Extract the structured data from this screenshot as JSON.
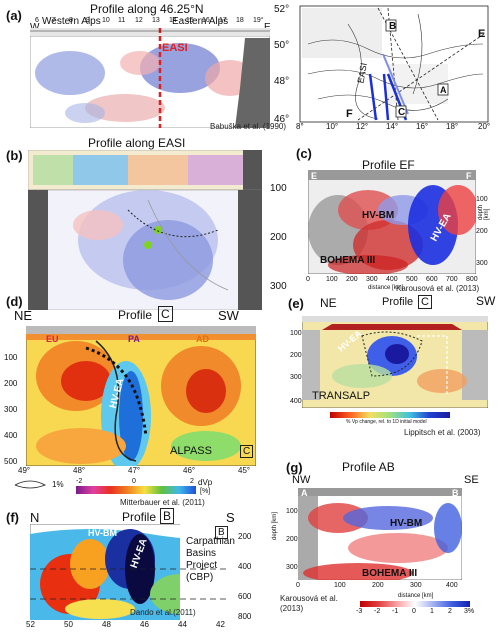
{
  "panel_a": {
    "label": "(a)",
    "title": "Profile along 46.25°N",
    "left_region": "Western Alps",
    "right_region": "Eastern Alps",
    "west": "W",
    "east": "E",
    "ticks": [
      "6",
      "7",
      "8",
      "9",
      "10",
      "11",
      "12",
      "13",
      "14",
      "15",
      "16",
      "17",
      "18",
      "19°"
    ],
    "easi_label": "EASI",
    "credit": "Babuška et al. (1990)"
  },
  "map": {
    "lat_ticks": [
      "52°",
      "50°",
      "48°",
      "46°"
    ],
    "lon_ticks": [
      "8°",
      "10°",
      "12°",
      "14°",
      "16°",
      "18°",
      "20°"
    ],
    "labels": {
      "B": "B",
      "E": "E",
      "F": "F",
      "C": "C",
      "A": "A",
      "easi": "EASI"
    }
  },
  "panel_b": {
    "label": "(b)",
    "title": "Profile along EASI",
    "depth_ticks": [
      "100",
      "200",
      "300"
    ]
  },
  "panel_c": {
    "label": "(c)",
    "title": "Profile EF",
    "left_end": "E",
    "right_end": "F",
    "hvbm": "HV-BM",
    "hvea": "HV-EA",
    "bohema": "BOHEMA III",
    "depth_label": "depth [km]",
    "depth_ticks": [
      "100",
      "200",
      "300"
    ],
    "dist_label": "distance [km]",
    "dist_ticks": [
      "0",
      "100",
      "200",
      "300",
      "400",
      "500",
      "600",
      "700",
      "800"
    ],
    "credit": "Karousová et al. (2013)"
  },
  "panel_d": {
    "label": "(d)",
    "left": "NE",
    "title_prefix": "Profile",
    "title_box": "C",
    "right": "SW",
    "eu": "EU",
    "pa": "PA",
    "ad": "AD",
    "hvea": "HV-EA",
    "alpass": "ALPASS",
    "corner": "C",
    "depth_ticks": [
      "100",
      "200",
      "300",
      "400",
      "500"
    ],
    "lat_ticks": [
      "49°",
      "48°",
      "47°",
      "46°",
      "45°"
    ],
    "scale_pct": "1%",
    "cbar_ticks": [
      "-2",
      "0",
      "2"
    ],
    "cbar_unit": "dVp",
    "cbar_unit2": "[%]",
    "credit": "Mitterbauer et al. (2011)"
  },
  "panel_e": {
    "label": "(e)",
    "left": "NE",
    "title_prefix": "Profile",
    "title_box": "C",
    "right": "SW",
    "hvea": "HV-EA",
    "transalp": "TRANSALP",
    "depth_ticks": [
      "100",
      "200",
      "300",
      "400"
    ],
    "cbar_caption": "% Vp change, rel. to 1D initial model",
    "credit": "Lippitsch et al. (2003)"
  },
  "panel_f": {
    "label": "(f)",
    "left": "N",
    "title_prefix": "Profile",
    "title_box": "B",
    "right": "S",
    "corner": "B",
    "hvbm": "HV-BM",
    "hvea": "HV-EA",
    "project_lines": [
      "Carpathian",
      "Basins",
      "Project",
      "(CBP)"
    ],
    "depth_ticks": [
      "200",
      "400",
      "600",
      "800"
    ],
    "lat_ticks": [
      "52",
      "50",
      "48",
      "46",
      "44",
      "42"
    ],
    "credit": "Dando et al.(2011)"
  },
  "panel_g": {
    "label": "(g)",
    "title": "Profile AB",
    "left": "NW",
    "right": "SE",
    "end_a": "A",
    "end_b": "B",
    "hvbm": "HV-BM",
    "bohema": "BOHEMA III",
    "depth_label": "depth [km]",
    "depth_ticks": [
      "100",
      "200",
      "300"
    ],
    "dist_label": "distance [km]",
    "dist_ticks": [
      "0",
      "100",
      "200",
      "300",
      "400"
    ],
    "cbar_ticks": [
      "-3",
      "-2",
      "-1",
      "0",
      "1",
      "2",
      "3%"
    ],
    "credit": "Karousová et al.",
    "credit2": "(2013)"
  }
}
